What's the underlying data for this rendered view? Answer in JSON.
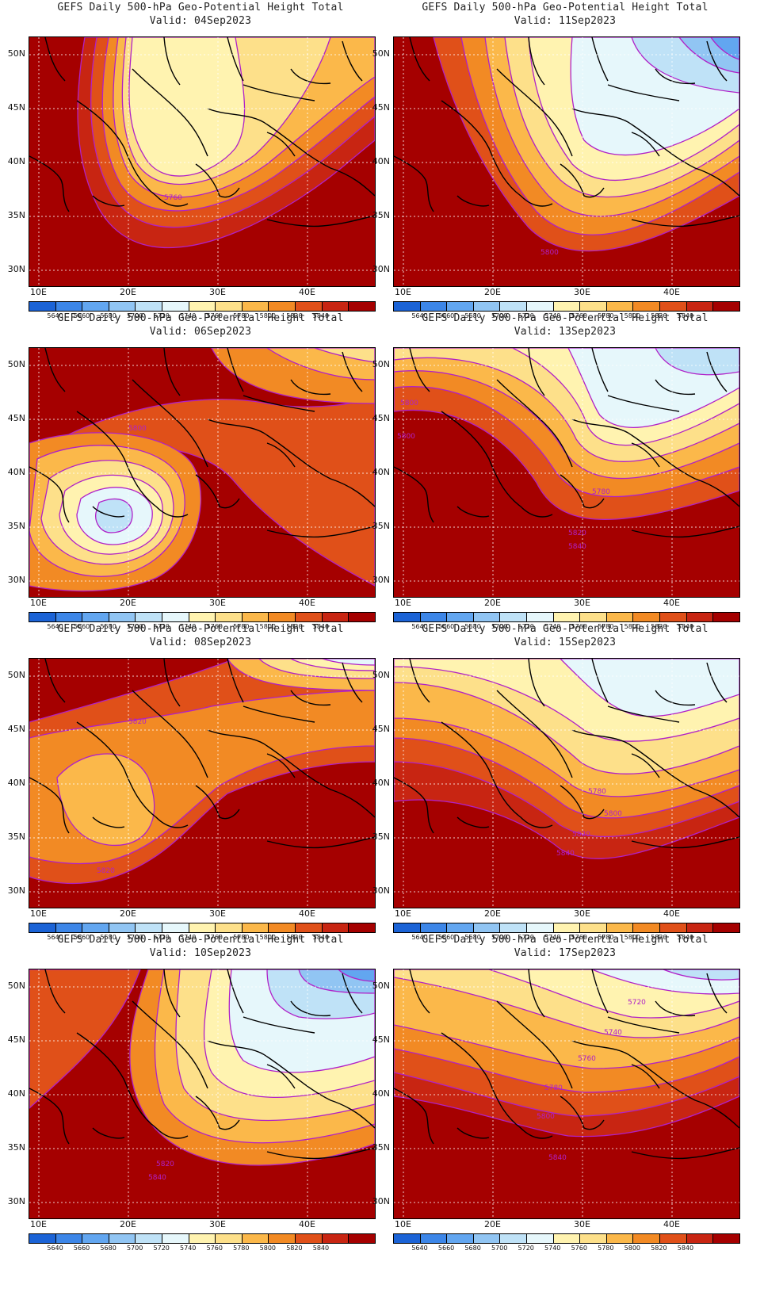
{
  "title": "GEFS Daily 500-hPa Geo-Potential Height Total",
  "valid_prefix": "Valid:",
  "lat_labels": [
    "50N",
    "45N",
    "40N",
    "35N",
    "30N"
  ],
  "lon_labels": [
    "10E",
    "20E",
    "30E",
    "40E"
  ],
  "legend": {
    "levels": [
      "5640",
      "5660",
      "5680",
      "5700",
      "5720",
      "5740",
      "5760",
      "5780",
      "5800",
      "5820",
      "5840"
    ],
    "colors": [
      "#1b63d6",
      "#3c86e8",
      "#62a6f0",
      "#91c5f3",
      "#bfe2f7",
      "#e6f7fb",
      "#fff3b0",
      "#fde08a",
      "#fbb84a",
      "#f28a24",
      "#e05019",
      "#c82512",
      "#a50000"
    ]
  },
  "contour_color": "#b020c8",
  "panels": [
    {
      "valid": "04Sep2023",
      "labels": [
        "5760"
      ]
    },
    {
      "valid": "11Sep2023",
      "labels": [
        "5800"
      ]
    },
    {
      "valid": "06Sep2023",
      "labels": [
        "5800"
      ]
    },
    {
      "valid": "13Sep2023",
      "labels": [
        "5800",
        "5800",
        "5780",
        "5820",
        "5840"
      ]
    },
    {
      "valid": "08Sep2023",
      "labels": [
        "5820",
        "5820"
      ]
    },
    {
      "valid": "15Sep2023",
      "labels": [
        "5780",
        "5800",
        "5820",
        "5840"
      ]
    },
    {
      "valid": "10Sep2023",
      "labels": [
        "5820",
        "5840"
      ]
    },
    {
      "valid": "17Sep2023",
      "labels": [
        "5720",
        "5740",
        "5760",
        "5780",
        "5800",
        "5840"
      ]
    }
  ]
}
